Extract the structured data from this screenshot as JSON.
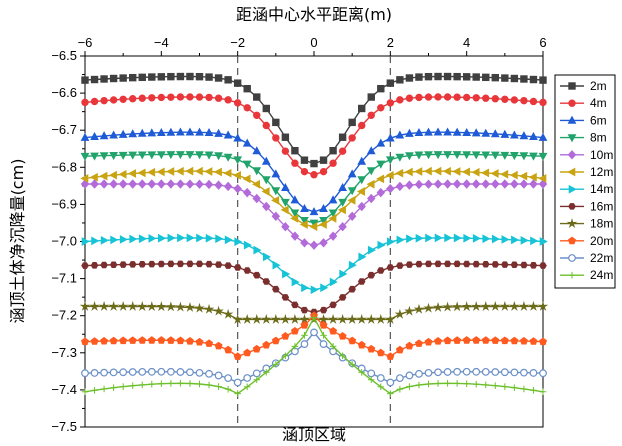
{
  "chart_data": {
    "type": "line",
    "xlabel": "距涵中心水平距离(m)",
    "ylabel": "涵顶土体净沉降量(cm)",
    "annotation": "涵顶区域",
    "xlim": [
      -6,
      6
    ],
    "ylim": [
      -7.5,
      -6.5
    ],
    "x_ticks": [
      "-6",
      "-4",
      "-2",
      "0",
      "2",
      "4",
      "6"
    ],
    "y_ticks": [
      "-6.5",
      "-6.6",
      "-6.7",
      "-6.8",
      "-6.9",
      "-7.0",
      "-7.1",
      "-7.2",
      "-7.3",
      "-7.4",
      "-7.5"
    ],
    "region_lines_x": [
      -2,
      2
    ],
    "x_axis_position": "top",
    "legend_position": "right",
    "grid": false,
    "series": [
      {
        "name": "2m",
        "color": "#404040",
        "marker": "square",
        "edge": -6.565,
        "mid": -6.555,
        "center": -6.79
      },
      {
        "name": "4m",
        "color": "#e8363a",
        "marker": "circle",
        "edge": -6.625,
        "mid": -6.61,
        "center": -6.82
      },
      {
        "name": "6m",
        "color": "#1f5bd6",
        "marker": "triangle-up",
        "edge": -6.72,
        "mid": -6.705,
        "center": -6.92
      },
      {
        "name": "8m",
        "color": "#21a36b",
        "marker": "triangle-down",
        "edge": -6.77,
        "mid": -6.765,
        "center": -6.95
      },
      {
        "name": "10m",
        "color": "#b26bd9",
        "marker": "diamond",
        "edge": -6.845,
        "mid": -6.845,
        "center": -7.01
      },
      {
        "name": "12m",
        "color": "#c9a312",
        "marker": "triangle-left",
        "edge": -6.83,
        "mid": -6.81,
        "center": -6.96
      },
      {
        "name": "14m",
        "color": "#17c3d6",
        "marker": "triangle-right",
        "edge": -7.0,
        "mid": -6.99,
        "center": -7.13
      },
      {
        "name": "16m",
        "color": "#7a2e2e",
        "marker": "hexagon",
        "edge": -7.065,
        "mid": -7.06,
        "center": -7.19
      },
      {
        "name": "18m",
        "color": "#6b6b1a",
        "marker": "star",
        "edge": -7.175,
        "mid": -7.175,
        "dip": -7.21,
        "center": -7.21
      },
      {
        "name": "20m",
        "color": "#ff5a1f",
        "marker": "pentagon",
        "edge": -7.27,
        "mid": -7.265,
        "dip": -7.31,
        "center": -7.2
      },
      {
        "name": "22m",
        "color": "#6b8fc7",
        "marker": "circle-open",
        "edge": -7.355,
        "mid": -7.35,
        "dip": -7.38,
        "center": -7.245
      },
      {
        "name": "24m",
        "color": "#6cc02b",
        "marker": "plus",
        "edge": -7.405,
        "mid": -7.38,
        "dip": -7.41,
        "center": -7.205
      }
    ]
  }
}
